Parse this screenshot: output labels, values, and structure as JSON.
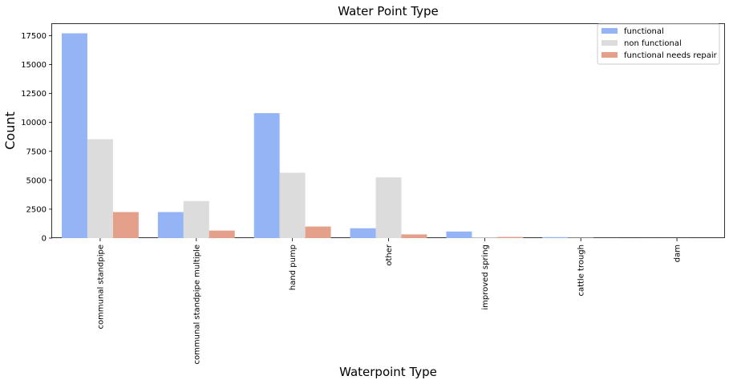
{
  "chart_data": {
    "type": "bar",
    "title": "Water Point Type",
    "xlabel": "Waterpoint Type",
    "ylabel": "Count",
    "ylim": [
      0,
      18500
    ],
    "yticks": [
      0,
      2500,
      5000,
      7500,
      10000,
      12500,
      15000,
      17500
    ],
    "legend_position": "top-right",
    "categories": [
      "communal standpipe",
      "communal standpipe multiple",
      "hand pump",
      "other",
      "improved spring",
      "cattle trough",
      "dam"
    ],
    "series": [
      {
        "name": "functional",
        "color": "#94b4f6",
        "values": [
          17700,
          2250,
          10800,
          850,
          570,
          85,
          3
        ]
      },
      {
        "name": "non functional",
        "color": "#dcdcdc",
        "values": [
          8550,
          3200,
          5650,
          5250,
          55,
          30,
          3
        ]
      },
      {
        "name": "functional needs repair",
        "color": "#e5a08a",
        "values": [
          2250,
          650,
          1000,
          320,
          100,
          5,
          0
        ]
      }
    ]
  }
}
